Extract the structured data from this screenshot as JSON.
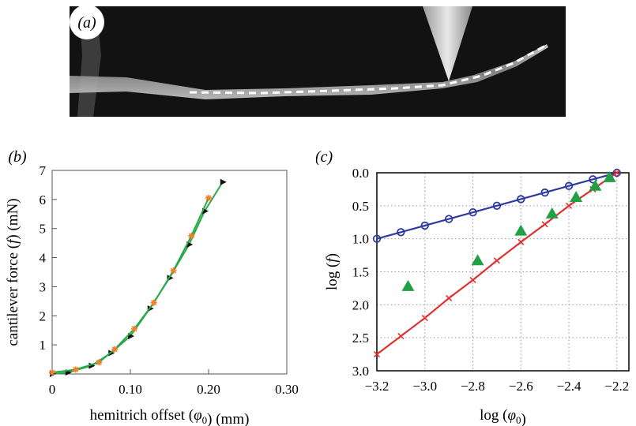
{
  "panel_a": {
    "label": "(a)"
  },
  "colors": {
    "green": "#2aa84a",
    "orange": "#f07f2a",
    "blue": "#2e3a9e",
    "red": "#e03030",
    "marker_green": "#22a045"
  },
  "chart_data": [
    {
      "panel": "(b)",
      "type": "line",
      "xlabel": "hemitrich offset (φ0) (mm)",
      "ylabel": "cantilever force (f) (mN)",
      "xlim": [
        0,
        0.3
      ],
      "ylim": [
        0,
        7
      ],
      "xticks": [
        0.1,
        0.2,
        0.3
      ],
      "xtick_labels": [
        "0.10",
        "0.20",
        "0.30"
      ],
      "yticks": [
        1,
        2,
        3,
        4,
        5,
        6,
        7
      ],
      "x_origin_label": "0",
      "grid": false,
      "series": [
        {
          "color": "green",
          "marker": "triangle-right",
          "x": [
            0.0,
            0.02,
            0.05,
            0.075,
            0.1,
            0.125,
            0.15,
            0.175,
            0.195,
            0.218
          ],
          "y": [
            0.0,
            0.05,
            0.28,
            0.72,
            1.3,
            2.25,
            3.3,
            4.45,
            5.6,
            6.6
          ]
        },
        {
          "color": "orange",
          "marker": "star",
          "x": [
            0.0,
            0.03,
            0.06,
            0.08,
            0.105,
            0.13,
            0.155,
            0.178,
            0.2
          ],
          "y": [
            0.05,
            0.15,
            0.4,
            0.85,
            1.55,
            2.45,
            3.55,
            4.75,
            6.05
          ]
        }
      ]
    },
    {
      "panel": "(c)",
      "type": "line",
      "xlabel": "log (φ0)",
      "ylabel": "log (f)",
      "xlim": [
        -3.2,
        -2.15
      ],
      "ylim": [
        0,
        3.0
      ],
      "y_inverted": true,
      "xticks": [
        -3.2,
        -3.0,
        -2.8,
        -2.6,
        -2.4,
        -2.2
      ],
      "xtick_labels": [
        "−3.2",
        "−3.0",
        "−2.8",
        "−2.6",
        "−2.4",
        "−2.2"
      ],
      "yticks": [
        0,
        0.5,
        1.0,
        1.5,
        2.0,
        2.5,
        3.0
      ],
      "ytick_labels": [
        "0.0",
        "0.5",
        "1.0",
        "1.5",
        "2.0",
        "2.5",
        "3.0"
      ],
      "grid": true,
      "series": [
        {
          "color": "blue",
          "marker": "circle",
          "line": true,
          "x": [
            -3.2,
            -3.1,
            -3.0,
            -2.9,
            -2.8,
            -2.7,
            -2.6,
            -2.5,
            -2.4,
            -2.3,
            -2.2
          ],
          "y": [
            1.0,
            0.9,
            0.8,
            0.7,
            0.6,
            0.5,
            0.4,
            0.3,
            0.2,
            0.1,
            0.0
          ]
        },
        {
          "color": "red",
          "marker": "x",
          "line": true,
          "x": [
            -3.2,
            -3.1,
            -3.0,
            -2.9,
            -2.8,
            -2.7,
            -2.6,
            -2.5,
            -2.4,
            -2.3,
            -2.2
          ],
          "y": [
            2.75,
            2.475,
            2.2,
            1.9,
            1.625,
            1.33,
            1.05,
            0.78,
            0.5,
            0.25,
            0.0
          ]
        },
        {
          "color": "marker_green",
          "marker": "triangle",
          "line": false,
          "x": [
            -3.07,
            -2.78,
            -2.6,
            -2.47,
            -2.37,
            -2.29,
            -2.23
          ],
          "y": [
            1.72,
            1.33,
            0.88,
            0.62,
            0.37,
            0.2,
            0.07
          ]
        }
      ]
    }
  ]
}
